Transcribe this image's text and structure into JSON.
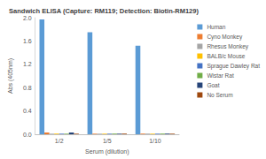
{
  "chart_data": {
    "type": "bar",
    "title": "Sandwich ELISA (Capture: RM119; Detection: Biotin-RM129)",
    "x_label": "Serum (dilution)",
    "y_label": "Abs (405nm)",
    "categories": [
      "1/2",
      "1/5",
      "1/10"
    ],
    "series": [
      {
        "name": "Human",
        "color": "#5b9bd5",
        "values": [
          1.97,
          1.75,
          1.52
        ]
      },
      {
        "name": "Cyno Monkey",
        "color": "#ed7d31",
        "values": [
          0.03,
          0.01,
          0.01
        ]
      },
      {
        "name": "Rhesus Monkey",
        "color": "#a5a5a5",
        "values": [
          0.01,
          0.01,
          0.01
        ]
      },
      {
        "name": "BALB/c Mouse",
        "color": "#ffc000",
        "values": [
          0.01,
          0.01,
          0.01
        ]
      },
      {
        "name": "Sprague Dawley Rat",
        "color": "#4472c4",
        "values": [
          0.01,
          0.01,
          0.01
        ]
      },
      {
        "name": "Wistar Rat",
        "color": "#70ad47",
        "values": [
          0.01,
          0.01,
          0.01
        ]
      },
      {
        "name": "Goat",
        "color": "#264478",
        "values": [
          0.03,
          0.01,
          0.01
        ]
      },
      {
        "name": "No Serum",
        "color": "#9e480e",
        "values": [
          0.01,
          0.01,
          0.01
        ]
      }
    ],
    "ylim": [
      0,
      2
    ],
    "yticks": [
      {
        "value": 0,
        "label": "0.0"
      },
      0.4,
      0.8,
      1.2,
      1.6,
      {
        "value": 2,
        "label": "2.0"
      }
    ],
    "grid": false,
    "legend": "right"
  }
}
